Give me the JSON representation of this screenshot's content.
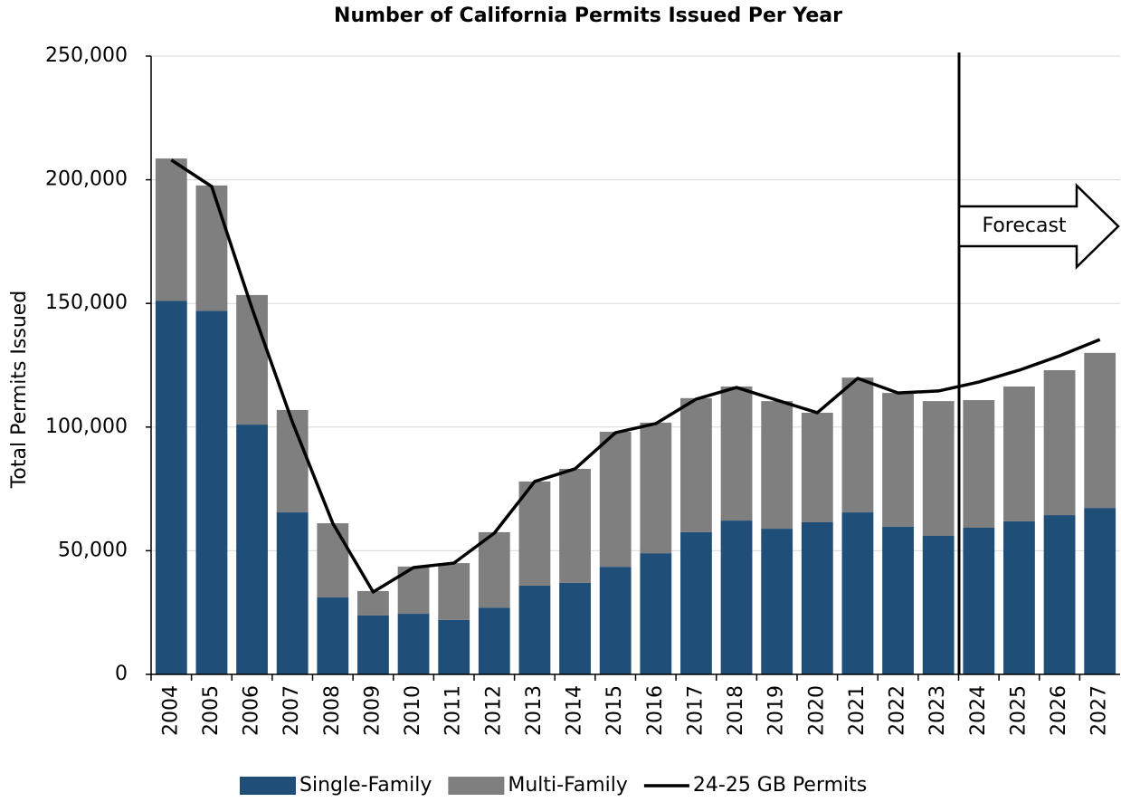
{
  "chart_data": {
    "type": "bar",
    "stacked": true,
    "grid": true,
    "title": "Number of California Permits Issued Per Year",
    "y_label": "Total Permits Issued",
    "annotation": "Forecast",
    "legend": "bottom",
    "categories": [
      "2004",
      "2005",
      "2006",
      "2007",
      "2008",
      "2009",
      "2010",
      "2011",
      "2012",
      "2013",
      "2014",
      "2015",
      "2016",
      "2017",
      "2018",
      "2019",
      "2020",
      "2021",
      "2022",
      "2023",
      "2024",
      "2025",
      "2026",
      "2027"
    ],
    "series": [
      {
        "name": "Single-Family",
        "type": "bar",
        "color": "#1f4e79",
        "values": [
          151000,
          147000,
          101000,
          65500,
          31100,
          23800,
          24500,
          22000,
          27000,
          35900,
          37000,
          43500,
          49000,
          57500,
          62200,
          58900,
          61500,
          65500,
          59700,
          56000,
          59300,
          61900,
          64400,
          67300
        ]
      },
      {
        "name": "Multi-Family",
        "type": "bar",
        "color": "#7f7f7f",
        "values": [
          57600,
          50700,
          52400,
          41400,
          30000,
          9900,
          19100,
          23000,
          30500,
          42100,
          46100,
          54600,
          52800,
          54200,
          54200,
          51600,
          44300,
          54500,
          54100,
          54500,
          51600,
          54500,
          58600,
          62700
        ]
      },
      {
        "name": "24-25 GB Permits",
        "type": "line",
        "color": "#000000",
        "values": [
          208000,
          197300,
          148000,
          102000,
          61100,
          33300,
          43200,
          45000,
          57100,
          78000,
          83100,
          97700,
          101400,
          111300,
          116000,
          110900,
          105800,
          119700,
          113800,
          114600,
          118200,
          123000,
          128800,
          135400
        ]
      }
    ],
    "ylim": [
      0,
      250000
    ],
    "yticks": [
      0,
      {
        "value": 50000,
        "label": "50,000"
      },
      {
        "value": 100000,
        "label": "100,000"
      },
      {
        "value": 150000,
        "label": "150,000"
      },
      {
        "value": 200000,
        "label": "200,000"
      },
      {
        "value": 250000,
        "label": "250,000"
      }
    ]
  }
}
